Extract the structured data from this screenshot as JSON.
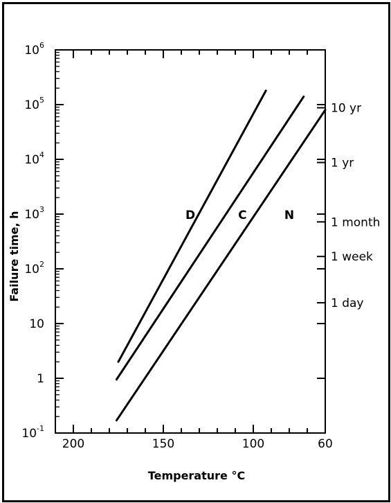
{
  "chart_data": {
    "type": "line",
    "xlabel": "Temperature °C",
    "ylabel": "Failure time, h",
    "x_axis": {
      "reversed": true,
      "xlim": [
        210,
        60
      ],
      "ticks": [
        200,
        150,
        100,
        60
      ],
      "tick_labels": [
        "200",
        "150",
        "100",
        "60"
      ]
    },
    "y_axis": {
      "scale": "log",
      "ylim": [
        0.1,
        1000000
      ],
      "ticks": [
        0.1,
        1,
        10,
        100,
        1000,
        10000,
        100000,
        1000000
      ],
      "tick_labels": [
        {
          "base": "10",
          "sup": "-1"
        },
        {
          "base": "1",
          "sup": ""
        },
        {
          "base": "10",
          "sup": ""
        },
        {
          "base": "10",
          "sup": "2"
        },
        {
          "base": "10",
          "sup": "3"
        },
        {
          "base": "10",
          "sup": "4"
        },
        {
          "base": "10",
          "sup": "5"
        },
        {
          "base": "10",
          "sup": "6"
        }
      ]
    },
    "right_axis": {
      "ticks": [
        {
          "label": "10 yr",
          "hours": 87600
        },
        {
          "label": "1 yr",
          "hours": 8760
        },
        {
          "label": "1 month",
          "hours": 720
        },
        {
          "label": "1 week",
          "hours": 168
        },
        {
          "label": "1 day",
          "hours": 24
        }
      ]
    },
    "series": [
      {
        "name": "D",
        "points": [
          [
            175,
            2
          ],
          [
            93,
            180000
          ]
        ],
        "label_at": [
          135,
          1000
        ]
      },
      {
        "name": "C",
        "points": [
          [
            176,
            0.95
          ],
          [
            72,
            140000
          ]
        ],
        "label_at": [
          106,
          1000
        ]
      },
      {
        "name": "N",
        "points": [
          [
            176,
            0.17
          ],
          [
            60,
            80000
          ]
        ],
        "label_at": [
          80,
          1000
        ]
      }
    ],
    "grid": false
  }
}
